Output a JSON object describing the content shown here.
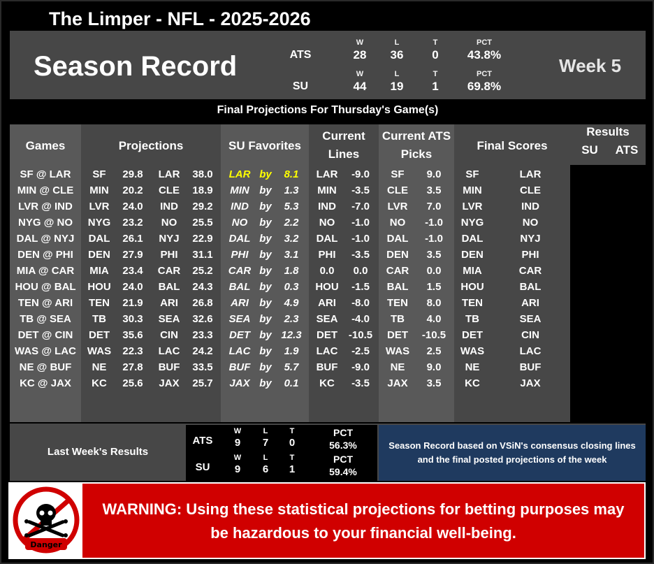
{
  "header": {
    "title": "The Limper - NFL - 2025-2026",
    "season_title": "Season Record",
    "week": "Week 5",
    "ats": {
      "label": "ATS",
      "w_h": "W",
      "l_h": "L",
      "t_h": "T",
      "pct_h": "PCT",
      "w": "28",
      "l": "36",
      "t": "0",
      "pct": "43.8%"
    },
    "su": {
      "label": "SU",
      "w_h": "W",
      "l_h": "L",
      "t_h": "T",
      "pct_h": "PCT",
      "w": "44",
      "l": "19",
      "t": "1",
      "pct": "69.8%"
    }
  },
  "subtitle": "Final Projections For Thursday's Game(s)",
  "columns": {
    "games": "Games",
    "projections": "Projections",
    "su_favorites": "SU Favorites",
    "current_lines_1": "Current",
    "current_lines_2": "Lines",
    "ats_picks_1": "Current ATS",
    "ats_picks_2": "Picks",
    "final_scores": "Final Scores",
    "results": "Results",
    "results_su": "SU",
    "results_ats": "ATS"
  },
  "games": [
    {
      "game": "SF @ LAR",
      "t1": "SF",
      "s1": "29.8",
      "t2": "LAR",
      "s2": "38.0",
      "fav": "LAR",
      "by": "by",
      "margin": "8.1",
      "hl": true,
      "lt": "LAR",
      "lv": "-9.0",
      "pt": "SF",
      "pv": "9.0",
      "f1": "SF",
      "f2": "LAR"
    },
    {
      "game": "MIN @ CLE",
      "t1": "MIN",
      "s1": "20.2",
      "t2": "CLE",
      "s2": "18.9",
      "fav": "MIN",
      "by": "by",
      "margin": "1.3",
      "hl": false,
      "lt": "MIN",
      "lv": "-3.5",
      "pt": "CLE",
      "pv": "3.5",
      "f1": "MIN",
      "f2": "CLE"
    },
    {
      "game": "LVR @ IND",
      "t1": "LVR",
      "s1": "24.0",
      "t2": "IND",
      "s2": "29.2",
      "fav": "IND",
      "by": "by",
      "margin": "5.3",
      "hl": false,
      "lt": "IND",
      "lv": "-7.0",
      "pt": "LVR",
      "pv": "7.0",
      "f1": "LVR",
      "f2": "IND"
    },
    {
      "game": "NYG @ NO",
      "t1": "NYG",
      "s1": "23.2",
      "t2": "NO",
      "s2": "25.5",
      "fav": "NO",
      "by": "by",
      "margin": "2.2",
      "hl": false,
      "lt": "NO",
      "lv": "-1.0",
      "pt": "NO",
      "pv": "-1.0",
      "f1": "NYG",
      "f2": "NO"
    },
    {
      "game": "DAL @ NYJ",
      "t1": "DAL",
      "s1": "26.1",
      "t2": "NYJ",
      "s2": "22.9",
      "fav": "DAL",
      "by": "by",
      "margin": "3.2",
      "hl": false,
      "lt": "DAL",
      "lv": "-1.0",
      "pt": "DAL",
      "pv": "-1.0",
      "f1": "DAL",
      "f2": "NYJ"
    },
    {
      "game": "DEN @ PHI",
      "t1": "DEN",
      "s1": "27.9",
      "t2": "PHI",
      "s2": "31.1",
      "fav": "PHI",
      "by": "by",
      "margin": "3.1",
      "hl": false,
      "lt": "PHI",
      "lv": "-3.5",
      "pt": "DEN",
      "pv": "3.5",
      "f1": "DEN",
      "f2": "PHI"
    },
    {
      "game": "MIA @ CAR",
      "t1": "MIA",
      "s1": "23.4",
      "t2": "CAR",
      "s2": "25.2",
      "fav": "CAR",
      "by": "by",
      "margin": "1.8",
      "hl": false,
      "lt": "0.0",
      "lv": "0.0",
      "pt": "CAR",
      "pv": "0.0",
      "f1": "MIA",
      "f2": "CAR"
    },
    {
      "game": "HOU @ BAL",
      "t1": "HOU",
      "s1": "24.0",
      "t2": "BAL",
      "s2": "24.3",
      "fav": "BAL",
      "by": "by",
      "margin": "0.3",
      "hl": false,
      "lt": "HOU",
      "lv": "-1.5",
      "pt": "BAL",
      "pv": "1.5",
      "f1": "HOU",
      "f2": "BAL"
    },
    {
      "game": "TEN @ ARI",
      "t1": "TEN",
      "s1": "21.9",
      "t2": "ARI",
      "s2": "26.8",
      "fav": "ARI",
      "by": "by",
      "margin": "4.9",
      "hl": false,
      "lt": "ARI",
      "lv": "-8.0",
      "pt": "TEN",
      "pv": "8.0",
      "f1": "TEN",
      "f2": "ARI"
    },
    {
      "game": "TB @ SEA",
      "t1": "TB",
      "s1": "30.3",
      "t2": "SEA",
      "s2": "32.6",
      "fav": "SEA",
      "by": "by",
      "margin": "2.3",
      "hl": false,
      "lt": "SEA",
      "lv": "-4.0",
      "pt": "TB",
      "pv": "4.0",
      "f1": "TB",
      "f2": "SEA"
    },
    {
      "game": "DET @ CIN",
      "t1": "DET",
      "s1": "35.6",
      "t2": "CIN",
      "s2": "23.3",
      "fav": "DET",
      "by": "by",
      "margin": "12.3",
      "hl": false,
      "lt": "DET",
      "lv": "-10.5",
      "pt": "DET",
      "pv": "-10.5",
      "f1": "DET",
      "f2": "CIN"
    },
    {
      "game": "WAS @ LAC",
      "t1": "WAS",
      "s1": "22.3",
      "t2": "LAC",
      "s2": "24.2",
      "fav": "LAC",
      "by": "by",
      "margin": "1.9",
      "hl": false,
      "lt": "LAC",
      "lv": "-2.5",
      "pt": "WAS",
      "pv": "2.5",
      "f1": "WAS",
      "f2": "LAC"
    },
    {
      "game": "NE @ BUF",
      "t1": "NE",
      "s1": "27.8",
      "t2": "BUF",
      "s2": "33.5",
      "fav": "BUF",
      "by": "by",
      "margin": "5.7",
      "hl": false,
      "lt": "BUF",
      "lv": "-9.0",
      "pt": "NE",
      "pv": "9.0",
      "f1": "NE",
      "f2": "BUF"
    },
    {
      "game": "KC @ JAX",
      "t1": "KC",
      "s1": "25.6",
      "t2": "JAX",
      "s2": "25.7",
      "fav": "JAX",
      "by": "by",
      "margin": "0.1",
      "hl": false,
      "lt": "KC",
      "lv": "-3.5",
      "pt": "JAX",
      "pv": "3.5",
      "f1": "KC",
      "f2": "JAX"
    }
  ],
  "last_week": {
    "label": "Last Week's Results",
    "ats": {
      "label": "ATS",
      "w_h": "W",
      "l_h": "L",
      "t_h": "T",
      "pct_h": "PCT",
      "w": "9",
      "l": "7",
      "t": "0",
      "pct": "56.3%"
    },
    "su": {
      "label": "SU",
      "w_h": "W",
      "l_h": "L",
      "t_h": "T",
      "pct_h": "PCT",
      "w": "9",
      "l": "6",
      "t": "1",
      "pct": "59.4%"
    }
  },
  "note": "Season Record based on VSiN's consensus closing lines and the final posted projections of the week",
  "warning": "WARNING: Using these statistical projections for betting purposes may be hazardous to your financial well-being.",
  "danger_label": "Danger",
  "colors": {
    "panel": "#474747",
    "shade": "#595959",
    "warning": "#d00000",
    "note": "#1f3a5f",
    "highlight": "#ffff00"
  }
}
